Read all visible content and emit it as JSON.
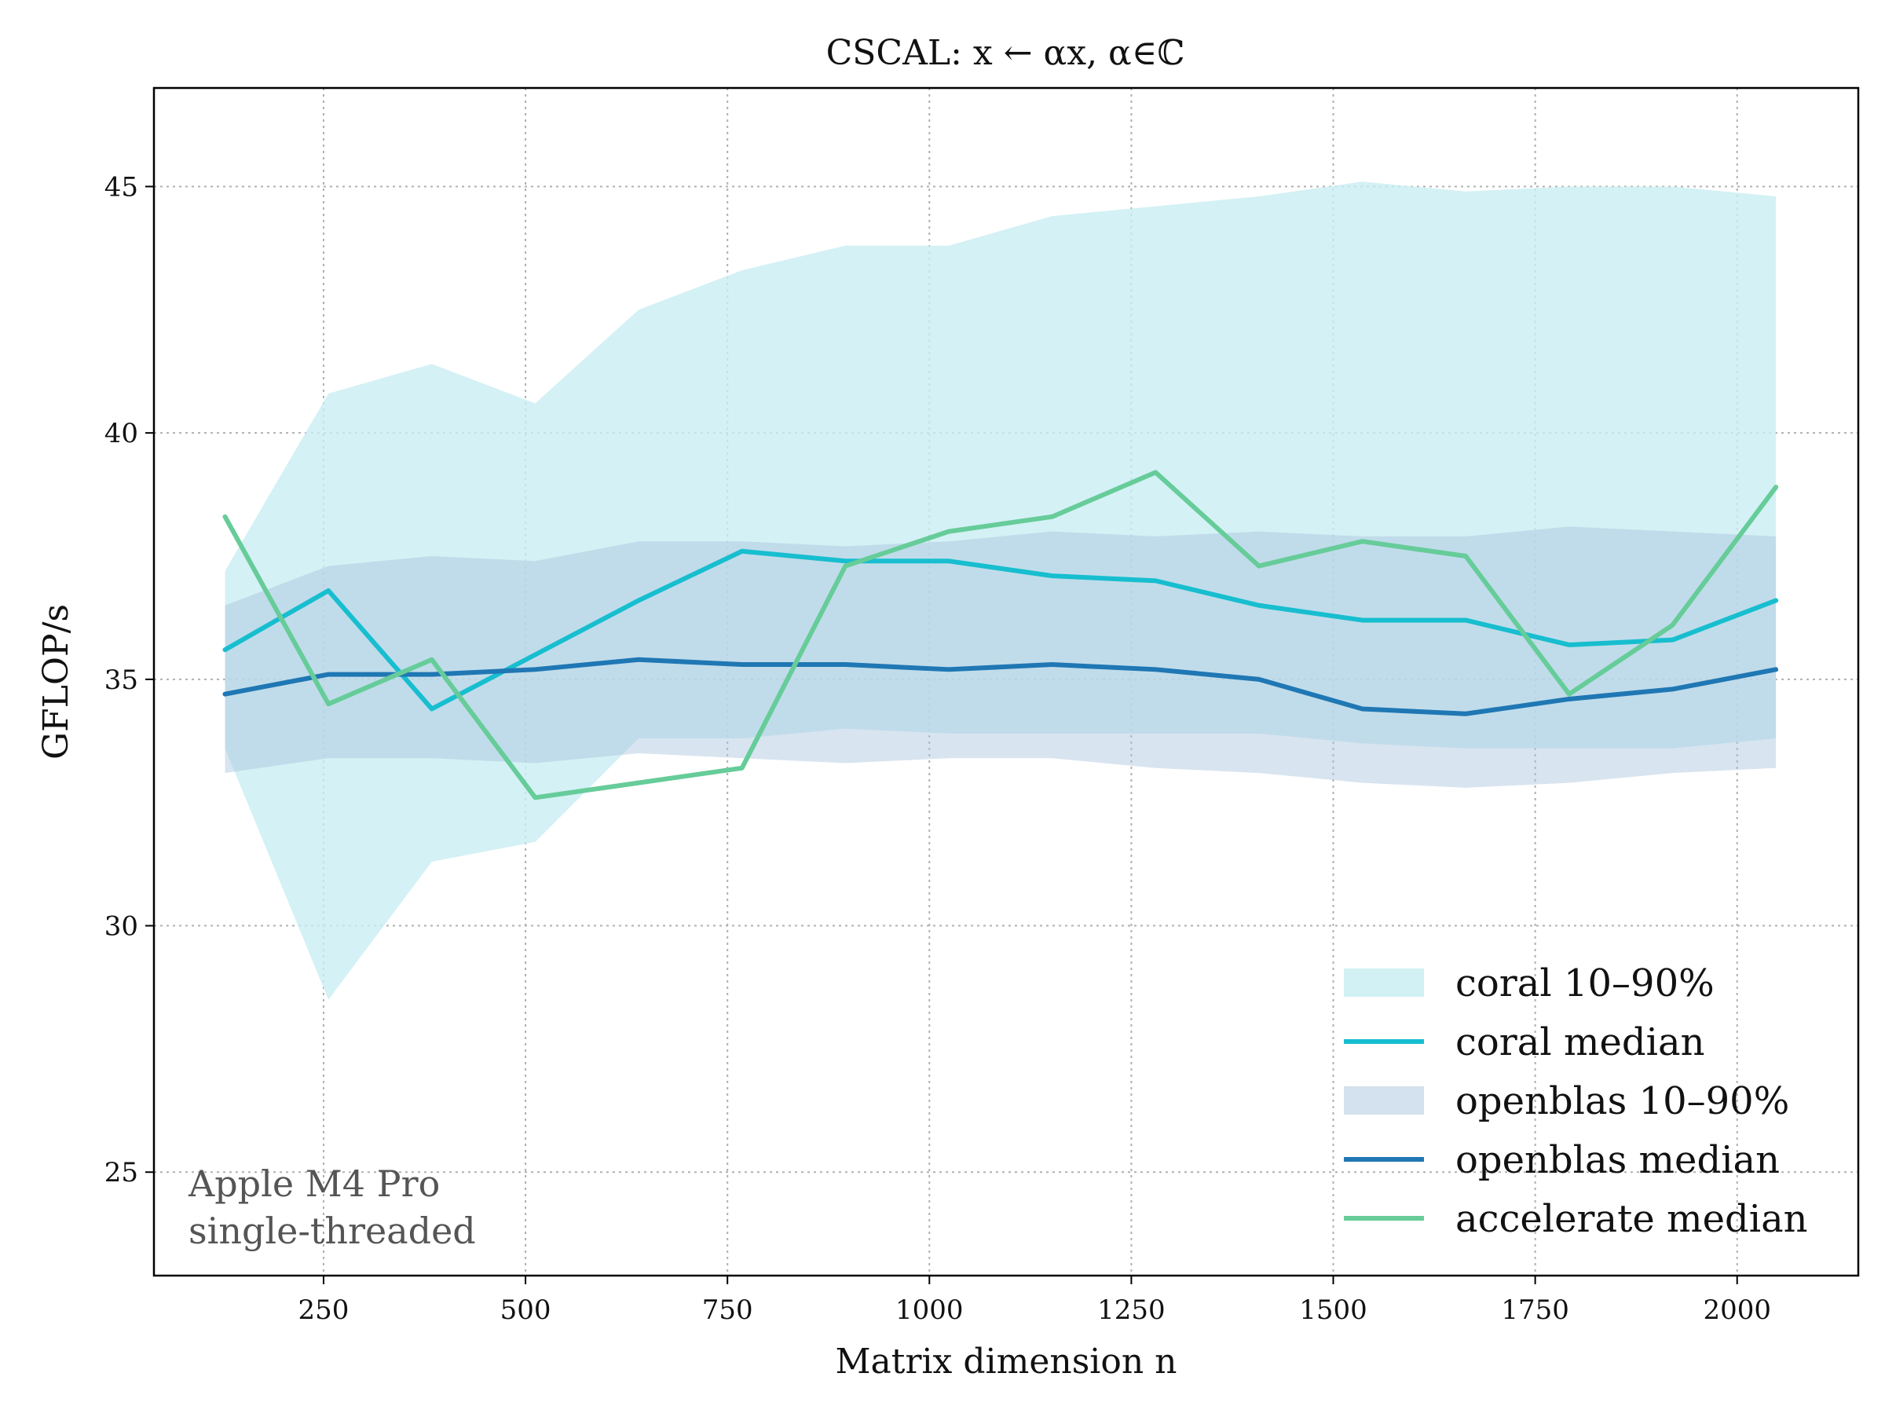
{
  "chart_data": {
    "type": "line",
    "title": "CSCAL: x ← αx,   α∈ℂ",
    "xlabel": "Matrix dimension n",
    "ylabel": "GFLOP/s",
    "xlim": [
      40,
      2150
    ],
    "ylim": [
      22.9,
      47.0
    ],
    "xticks": [
      250,
      500,
      750,
      1000,
      1250,
      1500,
      1750,
      2000
    ],
    "yticks": [
      25,
      30,
      35,
      40,
      45
    ],
    "grid": true,
    "legend_position": "lower-right",
    "x": [
      128,
      256,
      384,
      512,
      640,
      768,
      896,
      1024,
      1152,
      1280,
      1408,
      1536,
      1664,
      1792,
      1920,
      2048
    ],
    "bands": [
      {
        "name": "coral 10–90%",
        "color": "#c9eef2",
        "opacity": 0.8,
        "lower": [
          33.6,
          28.5,
          31.3,
          31.7,
          33.8,
          33.8,
          34.0,
          33.9,
          33.9,
          33.9,
          33.9,
          33.7,
          33.6,
          33.6,
          33.6,
          33.8
        ],
        "upper": [
          37.2,
          40.8,
          41.4,
          40.6,
          42.5,
          43.3,
          43.8,
          43.8,
          44.4,
          44.6,
          44.8,
          45.1,
          44.9,
          45.0,
          45.0,
          44.8
        ]
      },
      {
        "name": "openblas 10–90%",
        "color": "#a9c4de",
        "opacity": 0.45,
        "lower": [
          33.1,
          33.4,
          33.4,
          33.3,
          33.5,
          33.4,
          33.3,
          33.4,
          33.4,
          33.2,
          33.1,
          32.9,
          32.8,
          32.9,
          33.1,
          33.2
        ],
        "upper": [
          36.5,
          37.3,
          37.5,
          37.4,
          37.8,
          37.8,
          37.7,
          37.8,
          38.0,
          37.9,
          38.0,
          37.9,
          37.9,
          38.1,
          38.0,
          37.9
        ]
      }
    ],
    "series": [
      {
        "name": "coral median",
        "color": "#17becf",
        "values": [
          35.6,
          36.8,
          34.4,
          35.5,
          36.6,
          37.6,
          37.4,
          37.4,
          37.1,
          37.0,
          36.5,
          36.2,
          36.2,
          35.7,
          35.8,
          36.6
        ]
      },
      {
        "name": "openblas median",
        "color": "#1f77b4",
        "values": [
          34.7,
          35.1,
          35.1,
          35.2,
          35.4,
          35.3,
          35.3,
          35.2,
          35.3,
          35.2,
          35.0,
          34.4,
          34.3,
          34.6,
          34.8,
          35.2
        ]
      },
      {
        "name": "accelerate median",
        "color": "#66cc99",
        "values": [
          38.3,
          34.5,
          35.4,
          32.6,
          32.9,
          33.2,
          37.3,
          38.0,
          38.3,
          39.2,
          37.3,
          37.8,
          37.5,
          34.7,
          36.1,
          38.9
        ]
      }
    ],
    "legend": [
      "coral 10–90%",
      "coral median",
      "openblas 10–90%",
      "openblas median",
      "accelerate median"
    ],
    "annotation": {
      "lines": [
        "Apple M4 Pro",
        "single-threaded"
      ],
      "position": "lower-left"
    }
  }
}
